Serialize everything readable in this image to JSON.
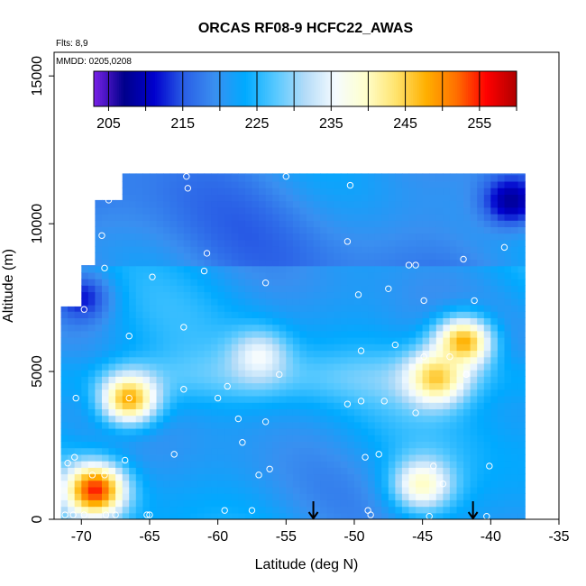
{
  "chart_data": {
    "type": "heatmap",
    "title": "ORCAS RF08-9 HCFC22_AWAS",
    "xlabel": "Latitude (deg N)",
    "ylabel": "Altitude (m)",
    "xlim": [
      -72,
      -35
    ],
    "ylim": [
      0,
      15800
    ],
    "x_ticks": [
      -70,
      -65,
      -60,
      -55,
      -50,
      -45,
      -40,
      -35
    ],
    "x_tick_labels": [
      "-70",
      "-65",
      "-60",
      "-55",
      "-50",
      "-45",
      "-40",
      "-35"
    ],
    "y_ticks": [
      0,
      5000,
      10000,
      15000
    ],
    "y_tick_labels": [
      "0",
      "5000",
      "10000",
      "15000"
    ],
    "notes": {
      "flights": "Flts: 8,9",
      "dates": "MMDD: 0205,0208"
    },
    "colorbar": {
      "min": 203,
      "max": 260,
      "ticks": [
        205,
        215,
        225,
        235,
        245,
        255
      ],
      "tick_labels": [
        "205",
        "215",
        "225",
        "235",
        "245",
        "255"
      ],
      "colors": [
        "#7a22e8",
        "#00008b",
        "#0000cd",
        "#2a5fe6",
        "#3a8ff0",
        "#00aaff",
        "#55c8ff",
        "#b4dcf8",
        "#f5fbff",
        "#ffffcc",
        "#ffe36e",
        "#ffb000",
        "#ff7000",
        "#ff0000",
        "#b00000"
      ]
    },
    "field_hotspots": [
      {
        "lat": -69.0,
        "alt": 1000,
        "value": 255
      },
      {
        "lat": -66.5,
        "alt": 4100,
        "value": 248
      },
      {
        "lat": -42.0,
        "alt": 6000,
        "value": 248
      },
      {
        "lat": -44.0,
        "alt": 4800,
        "value": 246
      },
      {
        "lat": -45.0,
        "alt": 1200,
        "value": 240
      },
      {
        "lat": -57.0,
        "alt": 5500,
        "value": 236
      },
      {
        "lat": -38.5,
        "alt": 10800,
        "value": 208
      },
      {
        "lat": -70.0,
        "alt": 7500,
        "value": 212
      }
    ],
    "arrows": [
      {
        "lat": -53.0
      },
      {
        "lat": -41.3
      }
    ],
    "sample_points": [
      [
        -71.2,
        150
      ],
      [
        -70.6,
        150
      ],
      [
        -69.8,
        150
      ],
      [
        -68.2,
        150
      ],
      [
        -67.5,
        150
      ],
      [
        -65.2,
        150
      ],
      [
        -65.0,
        150
      ],
      [
        -59.5,
        300
      ],
      [
        -57.5,
        300
      ],
      [
        -49.0,
        300
      ],
      [
        -48.8,
        150
      ],
      [
        -44.5,
        100
      ],
      [
        -40.3,
        100
      ],
      [
        -71.0,
        1900
      ],
      [
        -70.5,
        2100
      ],
      [
        -69.2,
        1500
      ],
      [
        -68.3,
        1500
      ],
      [
        -66.8,
        2000
      ],
      [
        -63.2,
        2200
      ],
      [
        -57.0,
        1500
      ],
      [
        -56.2,
        1700
      ],
      [
        -49.2,
        2100
      ],
      [
        -48.2,
        2200
      ],
      [
        -44.2,
        1800
      ],
      [
        -43.5,
        1200
      ],
      [
        -40.1,
        1800
      ],
      [
        -70.4,
        4100
      ],
      [
        -66.5,
        4100
      ],
      [
        -62.5,
        4400
      ],
      [
        -60.0,
        4100
      ],
      [
        -58.5,
        3400
      ],
      [
        -58.2,
        2600
      ],
      [
        -56.5,
        3300
      ],
      [
        -55.5,
        4900
      ],
      [
        -59.3,
        4500
      ],
      [
        -50.5,
        3900
      ],
      [
        -49.5,
        4000
      ],
      [
        -47.8,
        4000
      ],
      [
        -45.5,
        3600
      ],
      [
        -47.0,
        5900
      ],
      [
        -44.9,
        5500
      ],
      [
        -43.0,
        5500
      ],
      [
        -41.8,
        4900
      ],
      [
        -49.5,
        5700
      ],
      [
        -66.5,
        6200
      ],
      [
        -62.5,
        6500
      ],
      [
        -69.8,
        7100
      ],
      [
        -56.5,
        8000
      ],
      [
        -61.0,
        8400
      ],
      [
        -68.3,
        8500
      ],
      [
        -64.8,
        8200
      ],
      [
        -49.7,
        7600
      ],
      [
        -47.5,
        7800
      ],
      [
        -46.0,
        8600
      ],
      [
        -45.5,
        8600
      ],
      [
        -44.9,
        7400
      ],
      [
        -41.2,
        7400
      ],
      [
        -42.0,
        8800
      ],
      [
        -39.0,
        9200
      ],
      [
        -60.8,
        9000
      ],
      [
        -68.5,
        9600
      ],
      [
        -50.5,
        9400
      ],
      [
        -68.0,
        10800
      ],
      [
        -62.3,
        11600
      ],
      [
        -62.2,
        11200
      ],
      [
        -55.0,
        11600
      ],
      [
        -50.3,
        11300
      ]
    ]
  }
}
